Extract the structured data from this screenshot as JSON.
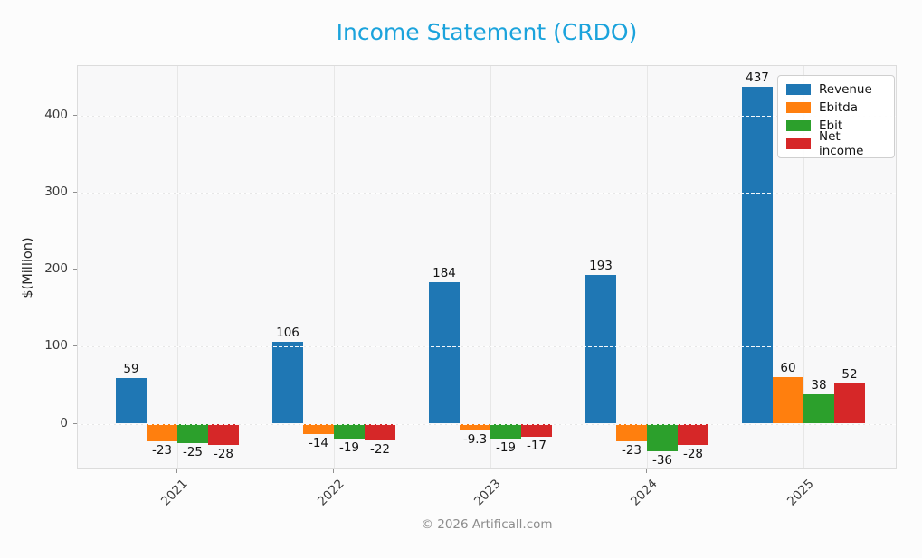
{
  "title": "Income Statement (CRDO)",
  "footer": "© 2026 Artificall.com",
  "colors": {
    "title": "#1ba3dc",
    "revenue": "#1f77b4",
    "ebitda": "#ff7f0e",
    "ebit": "#2ca02c",
    "net_income": "#d62728",
    "plot_background": "#f8f8f9",
    "figure_background": "#fcfcfc"
  },
  "chart_data": {
    "type": "bar",
    "title": "Income Statement (CRDO)",
    "xlabel": "",
    "ylabel": "$(Million)",
    "categories": [
      "2021",
      "2022",
      "2023",
      "2024",
      "2025"
    ],
    "series": [
      {
        "name": "Revenue",
        "color": "#1f77b4",
        "values": [
          59,
          106,
          184,
          193,
          437
        ]
      },
      {
        "name": "Ebitda",
        "color": "#ff7f0e",
        "values": [
          -23,
          -14,
          -9.3,
          -23,
          60
        ]
      },
      {
        "name": "Ebit",
        "color": "#2ca02c",
        "values": [
          -25,
          -19,
          -19,
          -36,
          38
        ]
      },
      {
        "name": "Net income",
        "color": "#d62728",
        "values": [
          -28,
          -22,
          -17,
          -28,
          52
        ]
      }
    ],
    "yticks": [
      0,
      100,
      200,
      300,
      400
    ],
    "ylim": [
      -60,
      464
    ],
    "grid": true,
    "legend_position": "upper right",
    "bar_value_labels_shown": true
  }
}
